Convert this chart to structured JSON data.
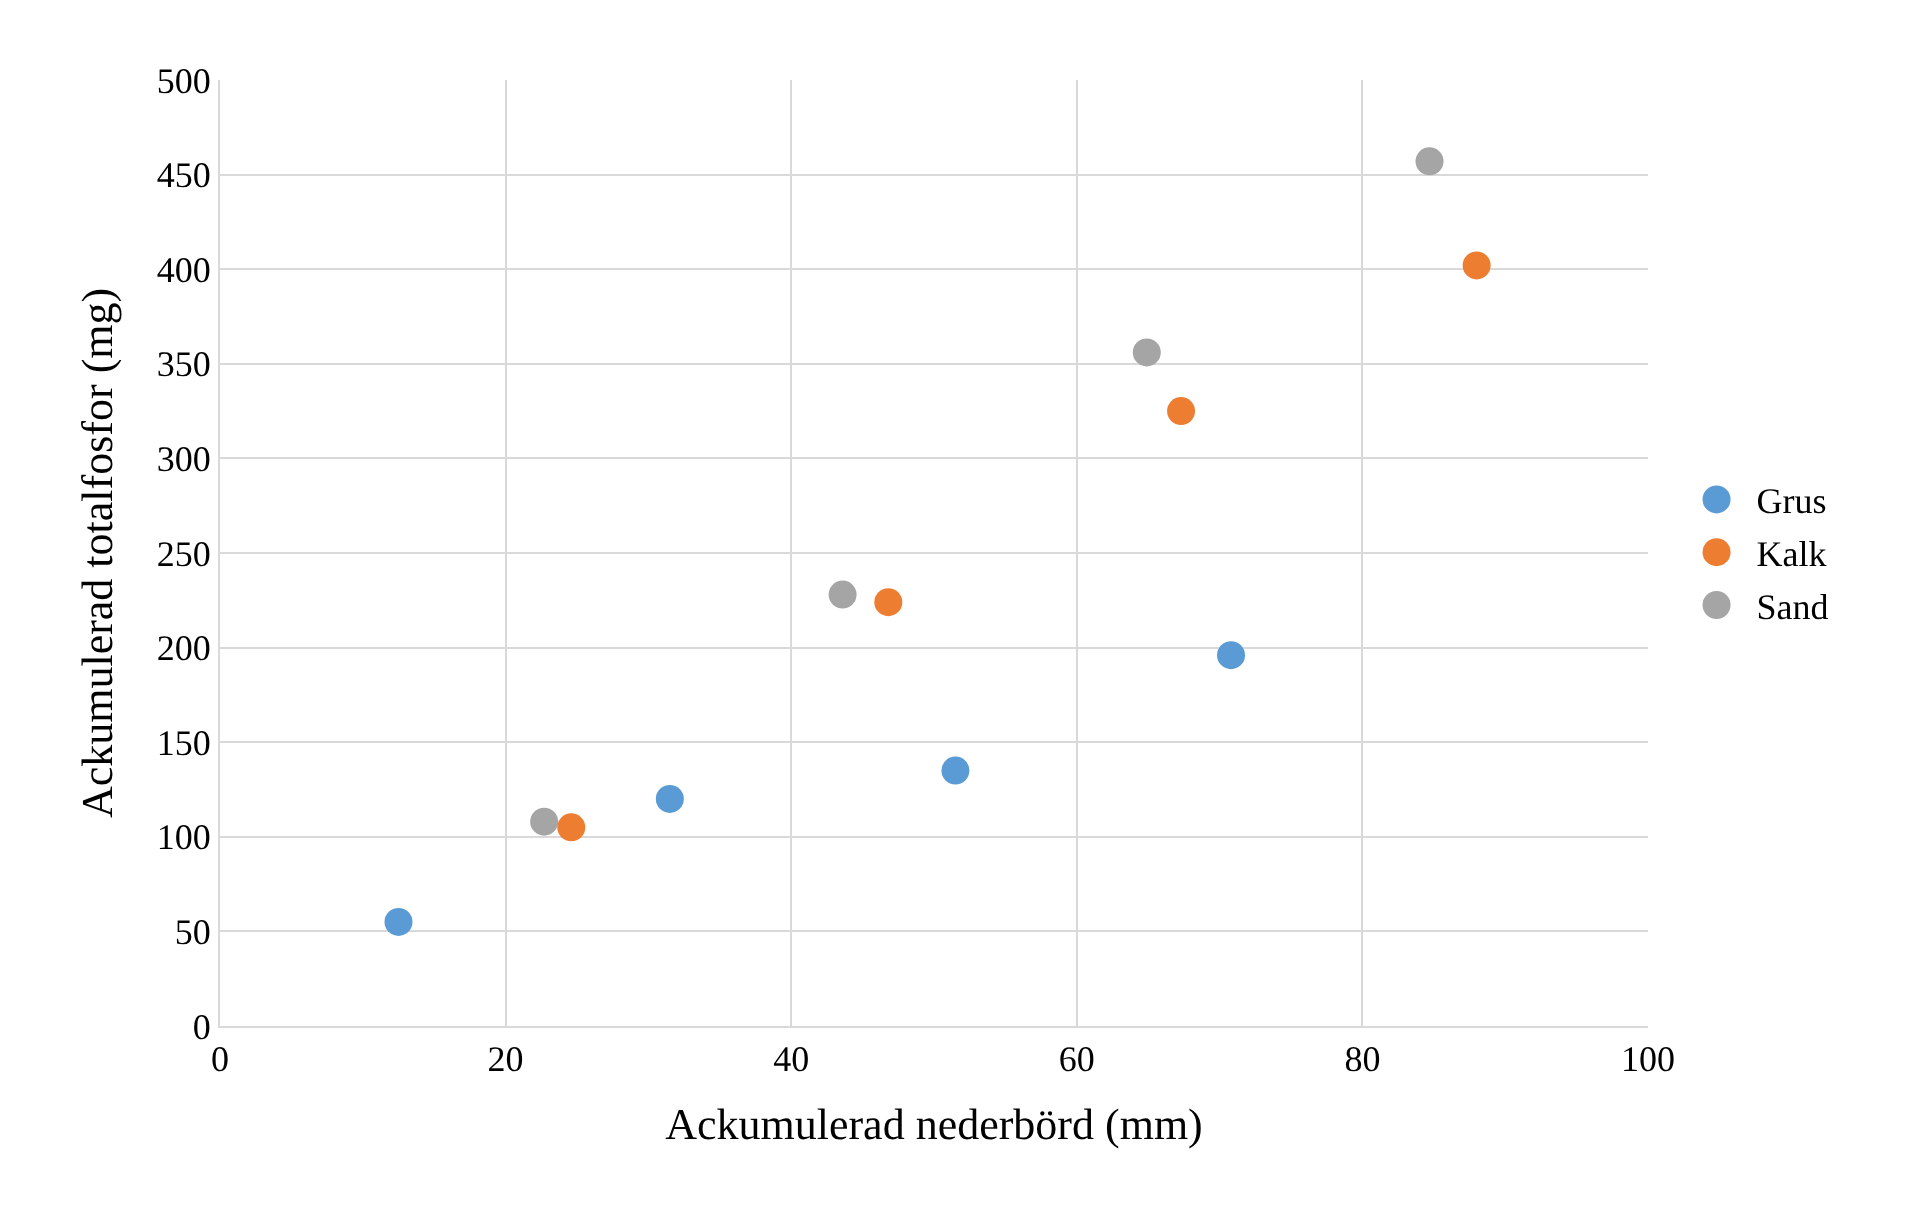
{
  "chart_data": {
    "type": "scatter",
    "xlabel": "Ackumulerad nederbörd (mm)",
    "ylabel": "Ackumulerad totalfosfor (mg)",
    "xlim": [
      0,
      100
    ],
    "xticks": [
      0,
      20,
      40,
      60,
      80,
      100
    ],
    "ylim": [
      0,
      500
    ],
    "yticks": [
      0,
      50,
      100,
      150,
      200,
      250,
      300,
      350,
      400,
      450,
      500
    ],
    "grid": true,
    "legend": "right",
    "marker": "circle",
    "series": [
      {
        "name": "Grus",
        "color": "#5b9bd5",
        "x": [
          12.5,
          31.5,
          51.5,
          70.8
        ],
        "values": [
          55,
          120,
          135,
          196
        ]
      },
      {
        "name": "Kalk",
        "color": "#ed7d31",
        "x": [
          24.6,
          46.8,
          67.3,
          88.0
        ],
        "values": [
          105,
          224,
          325,
          402
        ]
      },
      {
        "name": "Sand",
        "color": "#a5a5a5",
        "x": [
          22.7,
          43.6,
          64.9,
          84.7
        ],
        "values": [
          108,
          228,
          356,
          457
        ]
      }
    ]
  }
}
